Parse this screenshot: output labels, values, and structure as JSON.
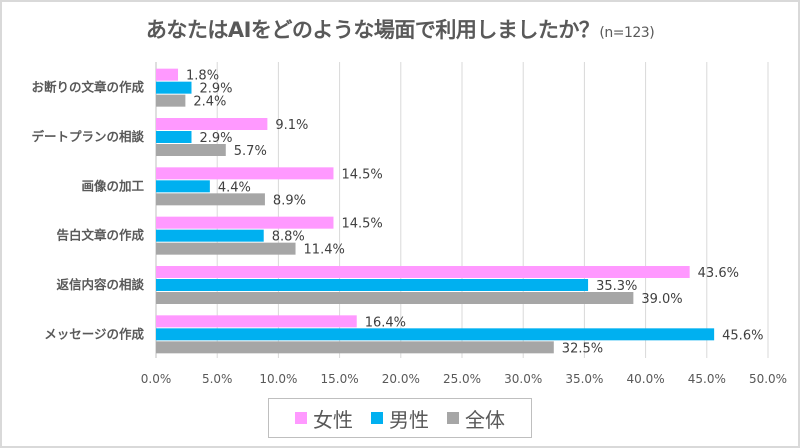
{
  "chart_data": {
    "type": "bar",
    "orientation": "horizontal",
    "title": "あなたはAIをどのような場面で利用しましたか？",
    "subtitle": "(n=123)",
    "categories": [
      "お断りの文章の作成",
      "デートプランの相談",
      "画像の加工",
      "告白文章の作成",
      "返信内容の相談",
      "メッセージの作成"
    ],
    "series": [
      {
        "name": "女性",
        "color": "#ff99ff",
        "values": [
          1.8,
          9.1,
          14.5,
          14.5,
          43.6,
          16.4
        ]
      },
      {
        "name": "男性",
        "color": "#00b0f0",
        "values": [
          2.9,
          2.9,
          4.4,
          8.8,
          35.3,
          45.6
        ]
      },
      {
        "name": "全体",
        "color": "#a6a6a6",
        "values": [
          2.4,
          5.7,
          8.9,
          11.4,
          39.0,
          32.5
        ]
      }
    ],
    "xlim": [
      0,
      50
    ],
    "xticks": [
      "0.0%",
      "5.0%",
      "10.0%",
      "15.0%",
      "20.0%",
      "25.0%",
      "30.0%",
      "35.0%",
      "40.0%",
      "45.0%",
      "50.0%"
    ],
    "grid": true,
    "legend_position": "bottom"
  }
}
